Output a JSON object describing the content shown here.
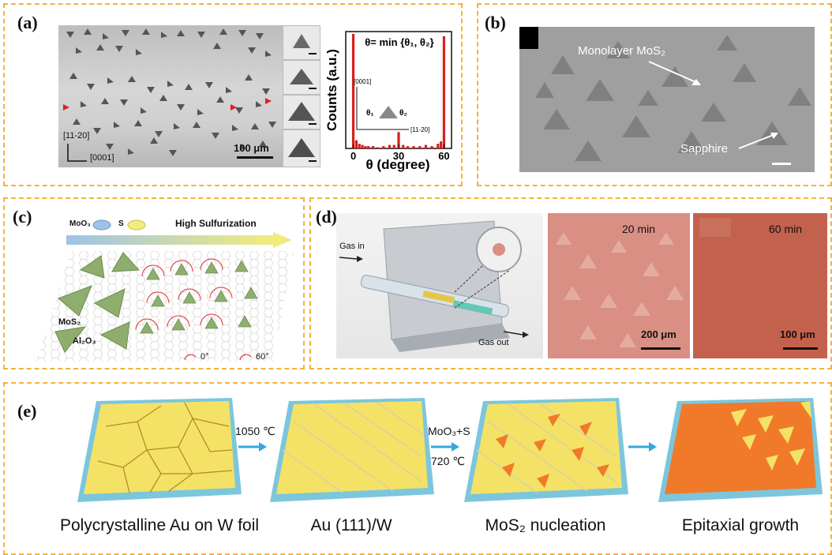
{
  "panels": {
    "a": {
      "label": "(a)",
      "scale": "100 μm",
      "dir_y": "[11-20]",
      "dir_x": "[0001]",
      "chart_data": {
        "type": "bar",
        "title": "θ= min {θ₁, θ₂}",
        "xlabel": "θ (degree)",
        "ylabel": "Counts (a.u.)",
        "xticks": [
          0,
          30,
          60
        ],
        "xlim": [
          -5,
          65
        ],
        "ylim": [
          0,
          1
        ],
        "x": [
          0,
          2,
          4,
          6,
          8,
          10,
          13,
          16,
          20,
          24,
          27,
          30,
          33,
          36,
          40,
          44,
          48,
          52,
          56,
          58,
          60
        ],
        "values": [
          0.98,
          0.07,
          0.04,
          0.03,
          0.02,
          0.02,
          0.02,
          0.01,
          0.02,
          0.03,
          0.03,
          0.14,
          0.03,
          0.02,
          0.02,
          0.02,
          0.03,
          0.02,
          0.04,
          0.06,
          0.96
        ],
        "bar_color": "#d8201c",
        "inset_labels": {
          "dir_up": "[0001]",
          "dir_right": "[11-20]",
          "theta1": "θ₁",
          "theta2": "θ₂"
        }
      }
    },
    "b": {
      "label": "(b)",
      "annotation_1": "Monolayer MoS₂",
      "annotation_2": "Sapphire"
    },
    "c": {
      "label": "(c)",
      "legend_moo3": "MoO₃",
      "legend_s": "S",
      "arrow_label": "High Sulfurization",
      "mos2_label": "MoS₂",
      "al2o3_label": "Al₂O₃",
      "angle_0": "0°",
      "angle_60": "60°"
    },
    "d": {
      "label": "(d)",
      "gas_in": "Gas in",
      "gas_out": "Gas out",
      "time_1": "20 min",
      "time_2": "60 min",
      "scale_1": "200 μm",
      "scale_2": "100 μm"
    },
    "e": {
      "label": "(e)",
      "step1_temp": "1050 ℃",
      "step2_reagents": "MoO₃+S",
      "step2_temp": "720 ℃",
      "captions": [
        "Polycrystalline Au on W foil",
        "Au (111)/W",
        "MoS₂ nucleation",
        "Epitaxial growth"
      ]
    }
  },
  "colors": {
    "frame": "#f3b23a",
    "gold": "#f4e266",
    "substrate": "#7cc6dd",
    "mos2": "#f07a2a",
    "arrow": "#3aa7db",
    "triangle_green": "#8fae6e",
    "micro_pink": "#d98f84",
    "micro_red": "#c4614c"
  }
}
